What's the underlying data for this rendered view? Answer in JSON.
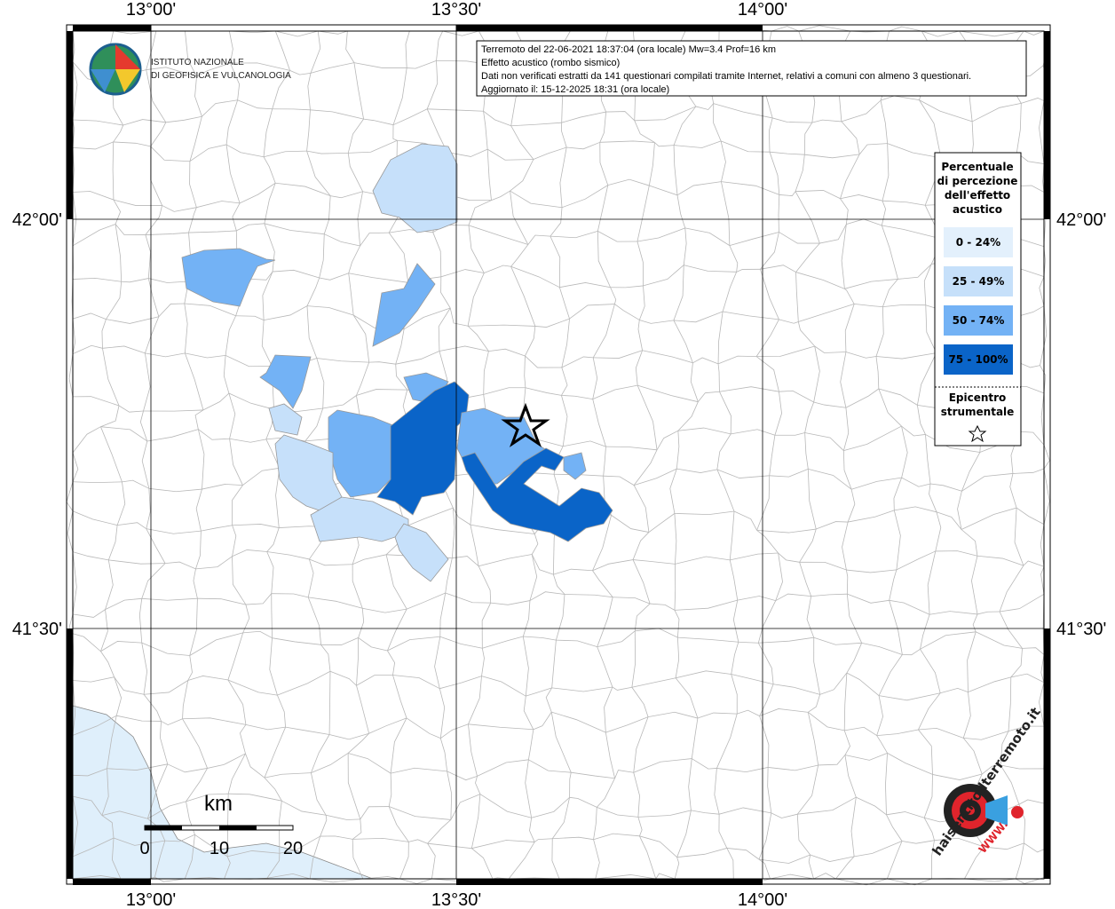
{
  "map": {
    "axis_labels": {
      "top": [
        "13°00'",
        "13°30'",
        "14°00'"
      ],
      "bottom": [
        "13°00'",
        "13°30'",
        "14°00'"
      ],
      "left": [
        "42°00'",
        "41°30'"
      ],
      "right": [
        "42°00'",
        "41°30'"
      ]
    },
    "logo": {
      "line1": "ISTITUTO NAZIONALE",
      "line2": "DI GEOFISICA E VULCANOLOGIA"
    },
    "info": [
      "Terremoto del 22-06-2021 18:37:04 (ora locale) Mw=3.4 Prof=16 km",
      "Effetto acustico (rombo sismico)",
      "Dati non verificati estratti da 141 questionari compilati tramite Internet, relativi a comuni con almeno 3 questionari.",
      "Aggiornato il: 15-12-2025 18:31 (ora locale)"
    ],
    "legend": {
      "title": [
        "Percentuale",
        "di percezione",
        "dell'effetto",
        "acustico"
      ],
      "classes": [
        {
          "label": "0 - 24%",
          "color": "#e3f0fc"
        },
        {
          "label": "25 - 49%",
          "color": "#c6e0fa"
        },
        {
          "label": "50 - 74%",
          "color": "#73b2f5"
        },
        {
          "label": "75 - 100%",
          "color": "#0a64c8"
        }
      ],
      "epicenter": [
        "Epicentro",
        "strumentale"
      ]
    },
    "scale": {
      "unit": "km",
      "labels": [
        "0",
        "10",
        "20"
      ]
    },
    "site_logo": {
      "text": "haisentitoilterremoto.it",
      "prefix": "WWW."
    }
  }
}
